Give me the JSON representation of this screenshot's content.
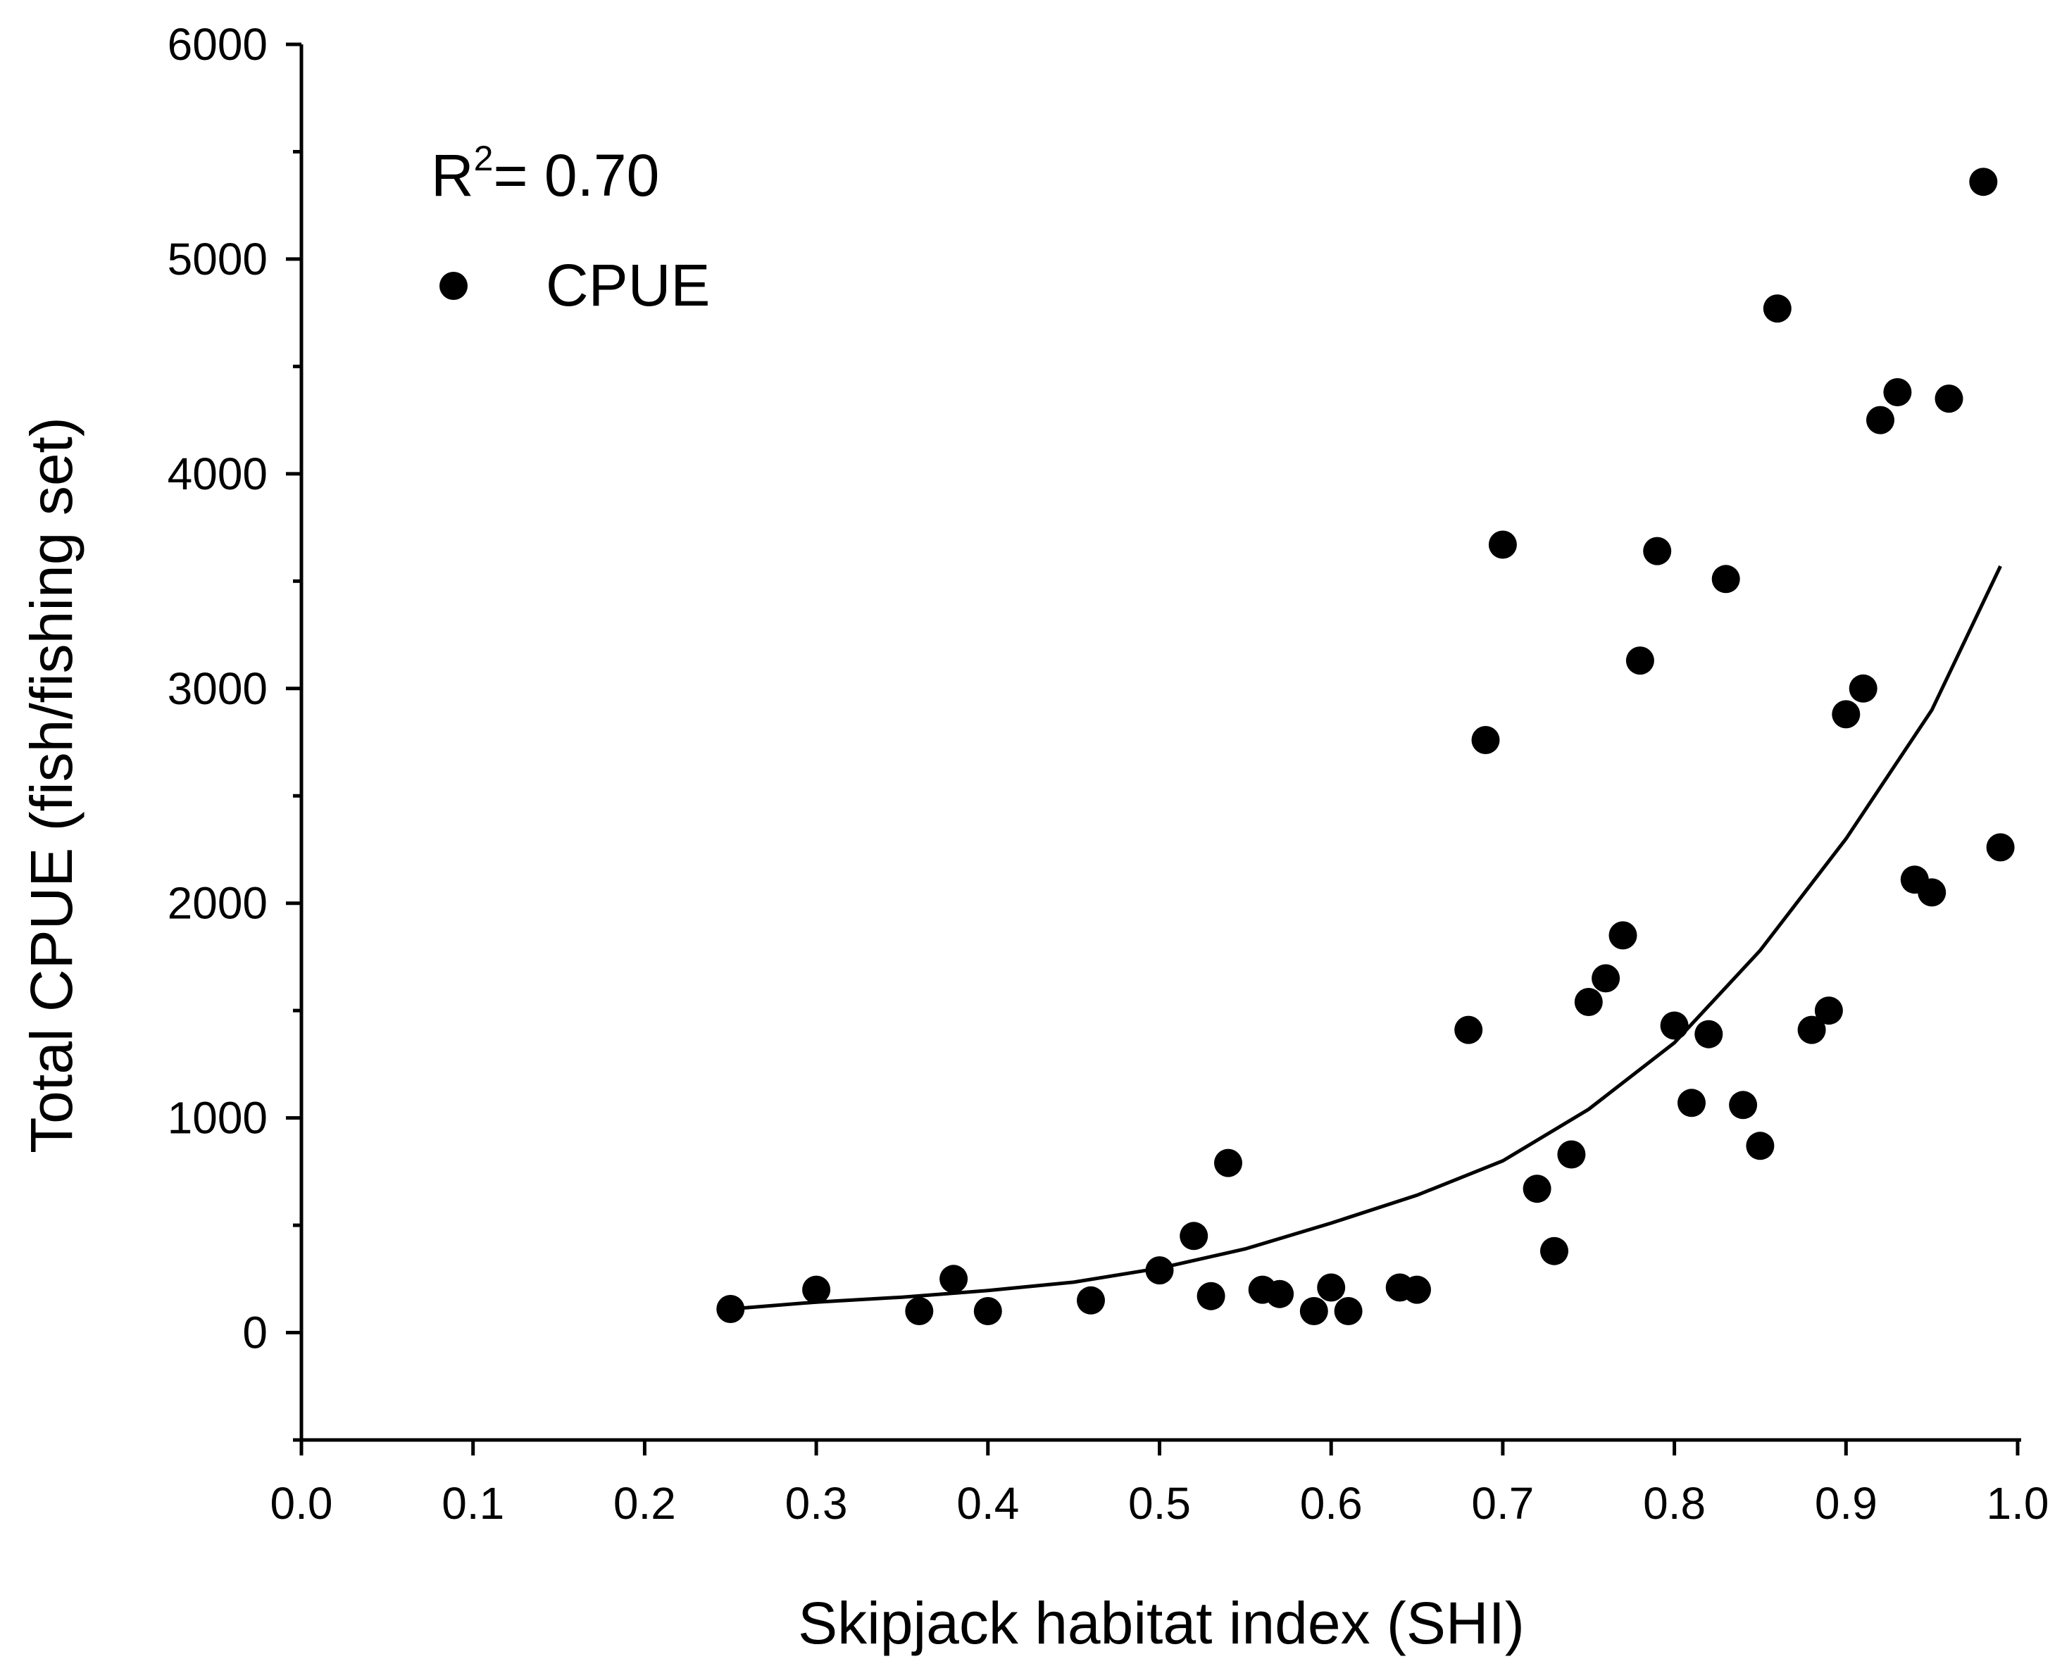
{
  "chart_data": {
    "type": "scatter",
    "title": "",
    "xlabel": "Skipjack habitat index (SHI)",
    "ylabel": "Total CPUE (fish/fishing set)",
    "xlim": [
      0.0,
      1.0
    ],
    "ylim": [
      -500,
      6000
    ],
    "xticks": [
      "0.0",
      "0.1",
      "0.2",
      "0.3",
      "0.4",
      "0.5",
      "0.6",
      "0.7",
      "0.8",
      "0.9",
      "1.0"
    ],
    "yticks": [
      "0",
      "1000",
      "2000",
      "3000",
      "4000",
      "5000",
      "6000"
    ],
    "grid": false,
    "legend": {
      "position": "top-left",
      "entries": [
        "CPUE"
      ]
    },
    "annotation": {
      "base": "R",
      "superscript": "2",
      "text": "= 0.70"
    },
    "series": [
      {
        "name": "CPUE",
        "marker": "filled-circle",
        "color": "#000000",
        "points": [
          [
            0.25,
            110
          ],
          [
            0.3,
            200
          ],
          [
            0.36,
            100
          ],
          [
            0.38,
            250
          ],
          [
            0.4,
            100
          ],
          [
            0.46,
            150
          ],
          [
            0.5,
            290
          ],
          [
            0.52,
            450
          ],
          [
            0.53,
            170
          ],
          [
            0.54,
            790
          ],
          [
            0.56,
            200
          ],
          [
            0.57,
            180
          ],
          [
            0.59,
            100
          ],
          [
            0.6,
            210
          ],
          [
            0.61,
            100
          ],
          [
            0.64,
            210
          ],
          [
            0.65,
            200
          ],
          [
            0.68,
            1410
          ],
          [
            0.69,
            2760
          ],
          [
            0.7,
            3670
          ],
          [
            0.72,
            670
          ],
          [
            0.73,
            380
          ],
          [
            0.74,
            830
          ],
          [
            0.75,
            1540
          ],
          [
            0.76,
            1650
          ],
          [
            0.77,
            1850
          ],
          [
            0.78,
            3130
          ],
          [
            0.79,
            3640
          ],
          [
            0.8,
            1430
          ],
          [
            0.81,
            1070
          ],
          [
            0.82,
            1390
          ],
          [
            0.83,
            3510
          ],
          [
            0.84,
            1060
          ],
          [
            0.85,
            870
          ],
          [
            0.86,
            4770
          ],
          [
            0.88,
            1410
          ],
          [
            0.89,
            1500
          ],
          [
            0.9,
            2880
          ],
          [
            0.91,
            3000
          ],
          [
            0.92,
            4250
          ],
          [
            0.93,
            4380
          ],
          [
            0.94,
            2110
          ],
          [
            0.95,
            2050
          ],
          [
            0.96,
            4350
          ],
          [
            0.98,
            5360
          ],
          [
            0.99,
            2260
          ]
        ]
      },
      {
        "name": "Exponential fit",
        "type": "line",
        "color": "#000000",
        "x": [
          0.25,
          0.3,
          0.35,
          0.4,
          0.45,
          0.5,
          0.55,
          0.6,
          0.65,
          0.7,
          0.75,
          0.8,
          0.85,
          0.9,
          0.95,
          0.99
        ],
        "y": [
          110,
          142,
          165,
          196,
          235,
          300,
          390,
          510,
          640,
          800,
          1040,
          1350,
          1780,
          2300,
          2900,
          3570
        ]
      }
    ]
  }
}
